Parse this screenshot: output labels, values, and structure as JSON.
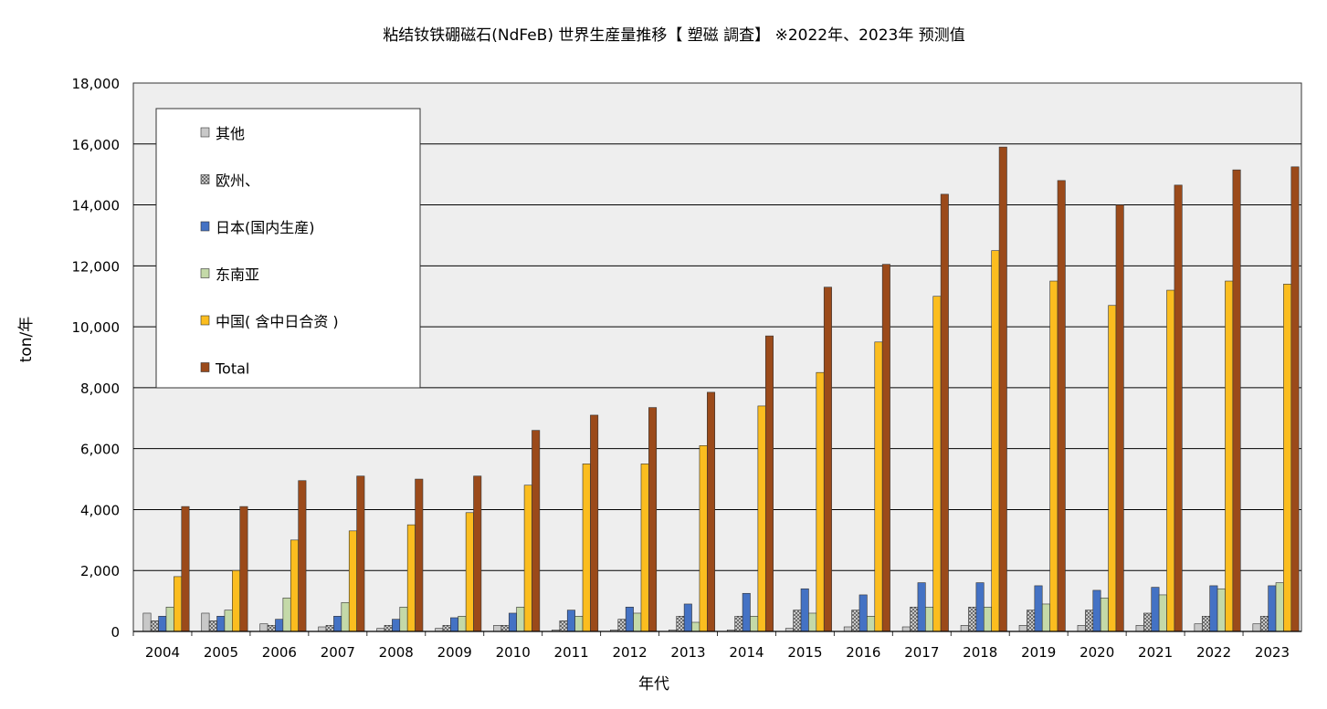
{
  "chart_data": {
    "type": "bar",
    "title": "粘结钕铁硼磁石(NdFeB)  世界生産量推移【    塑磁  調査】   ※2022年、2023年 预测值",
    "xlabel": "年代",
    "ylabel": "ton/年",
    "ylim": [
      0,
      18000
    ],
    "yticks": [
      0,
      2000,
      4000,
      6000,
      8000,
      10000,
      12000,
      14000,
      16000,
      18000
    ],
    "ytick_labels": [
      "0",
      "2,000",
      "4,000",
      "6,000",
      "8,000",
      "10,000",
      "12,000",
      "14,000",
      "16,000",
      "18,000"
    ],
    "grid": true,
    "legend_position": "top-left",
    "categories": [
      "2004",
      "2005",
      "2006",
      "2007",
      "2008",
      "2009",
      "2010",
      "2011",
      "2012",
      "2013",
      "2014",
      "2015",
      "2016",
      "2017",
      "2018",
      "2019",
      "2020",
      "2021",
      "2022",
      "2023"
    ],
    "series": [
      {
        "name": "其他",
        "color": "#c8c8c8",
        "pattern": "solid",
        "values": [
          600,
          600,
          250,
          150,
          100,
          100,
          200,
          50,
          50,
          50,
          50,
          100,
          150,
          150,
          200,
          200,
          200,
          200,
          250,
          250
        ]
      },
      {
        "name": "欧州、",
        "color": "#d0d0d0",
        "pattern": "crosshatch",
        "values": [
          350,
          350,
          200,
          200,
          200,
          200,
          200,
          350,
          400,
          500,
          500,
          700,
          700,
          800,
          800,
          700,
          700,
          600,
          500,
          500
        ]
      },
      {
        "name": "日本(国内生産)",
        "color": "#4472c4",
        "pattern": "solid",
        "values": [
          500,
          500,
          400,
          500,
          400,
          450,
          600,
          700,
          800,
          900,
          1250,
          1400,
          1200,
          1600,
          1600,
          1500,
          1350,
          1450,
          1500,
          1500
        ]
      },
      {
        "name": "东南亚",
        "color": "#c4d9a8",
        "pattern": "solid",
        "values": [
          800,
          700,
          1100,
          950,
          800,
          500,
          800,
          500,
          600,
          300,
          500,
          600,
          500,
          800,
          800,
          900,
          1100,
          1200,
          1400,
          1600
        ]
      },
      {
        "name": "中国( 含中日合资 )",
        "color": "#fbbd1f",
        "pattern": "solid",
        "values": [
          1800,
          2000,
          3000,
          3300,
          3500,
          3900,
          4800,
          5500,
          5500,
          6100,
          7400,
          8500,
          9500,
          11000,
          12500,
          11500,
          10700,
          11200,
          11500,
          11400
        ]
      },
      {
        "name": "Total",
        "color": "#9b4a1a",
        "pattern": "solid",
        "values": [
          4100,
          4100,
          4950,
          5100,
          5000,
          5100,
          6600,
          7100,
          7350,
          7850,
          9700,
          11300,
          12050,
          14350,
          15900,
          14800,
          14000,
          14650,
          15150,
          15250
        ]
      }
    ]
  }
}
